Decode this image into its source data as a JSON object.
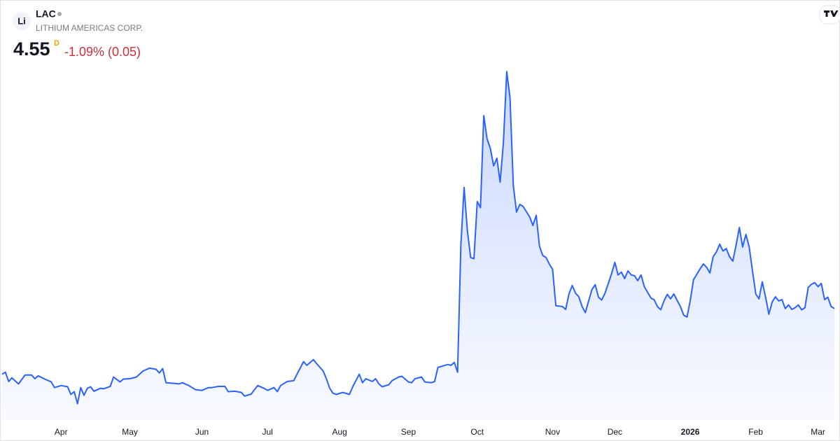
{
  "chart_data": {
    "type": "line",
    "logo": "Li",
    "symbol": "LAC",
    "name": "LITHIUM AMERICAS CORP.",
    "price": 4.55,
    "interval": "D",
    "change": "-1.09% (0.05)",
    "color": "#2962ff",
    "x": [
      0,
      1,
      2,
      3,
      5,
      7,
      9,
      10,
      11,
      13,
      15,
      16,
      18,
      20,
      21,
      22,
      23,
      24,
      25,
      26,
      27,
      28,
      30,
      31,
      33,
      34,
      36,
      37,
      39,
      41,
      43,
      45,
      47,
      48,
      49,
      50,
      53,
      54,
      55,
      57,
      59,
      61,
      63,
      64,
      66,
      68,
      69,
      71,
      73,
      74,
      76,
      78,
      80,
      81,
      83,
      84,
      85,
      87,
      89,
      90,
      92,
      93,
      95,
      96,
      98,
      99,
      100,
      101,
      102,
      104,
      106,
      107,
      109,
      110,
      111,
      113,
      114,
      115,
      116,
      118,
      119,
      121,
      122,
      124,
      125,
      126,
      128,
      129,
      131,
      132,
      133,
      134,
      136,
      137,
      138,
      139,
      140,
      141,
      142,
      143,
      144,
      145,
      146,
      147,
      148,
      149,
      150,
      151,
      152,
      153,
      154,
      155,
      156,
      157,
      158,
      159,
      161,
      162,
      163,
      164,
      165,
      166,
      167,
      168,
      169,
      171,
      172,
      173,
      174,
      175,
      176,
      177,
      178,
      179,
      180,
      181,
      182,
      183,
      184,
      185,
      186,
      187,
      188,
      189,
      190,
      191,
      192,
      193,
      194,
      195,
      196,
      198,
      199,
      200,
      201,
      202,
      203,
      204,
      205,
      207,
      208,
      209,
      210,
      211,
      213,
      214,
      215,
      216,
      217,
      218,
      219,
      220,
      221,
      222,
      223,
      224,
      225,
      226,
      227,
      228,
      229,
      230,
      231,
      232,
      233,
      234,
      235,
      236,
      237,
      238,
      239,
      240,
      241,
      242,
      243,
      244,
      245,
      246,
      247,
      248,
      249,
      250,
      251,
      252,
      253,
      254
    ],
    "values": [
      2.93,
      2.98,
      2.75,
      2.84,
      2.69,
      2.91,
      2.91,
      2.82,
      2.89,
      2.81,
      2.74,
      2.6,
      2.65,
      2.62,
      2.43,
      2.5,
      2.2,
      2.6,
      2.41,
      2.58,
      2.62,
      2.51,
      2.58,
      2.57,
      2.63,
      2.86,
      2.74,
      2.81,
      2.82,
      2.86,
      3.01,
      3.08,
      3.05,
      2.96,
      3.07,
      2.72,
      2.7,
      2.69,
      2.72,
      2.65,
      2.55,
      2.53,
      2.6,
      2.6,
      2.63,
      2.63,
      2.5,
      2.51,
      2.48,
      2.39,
      2.44,
      2.65,
      2.58,
      2.53,
      2.6,
      2.5,
      2.65,
      2.75,
      2.77,
      2.93,
      3.24,
      3.15,
      3.29,
      3.19,
      3.01,
      2.81,
      2.58,
      2.46,
      2.43,
      2.48,
      2.43,
      2.62,
      2.93,
      2.72,
      2.82,
      2.75,
      2.82,
      2.69,
      2.62,
      2.67,
      2.77,
      2.86,
      2.88,
      2.74,
      2.72,
      2.82,
      2.86,
      2.74,
      2.72,
      2.75,
      3.1,
      3.12,
      3.17,
      3.15,
      3.22,
      2.98,
      6.12,
      7.54,
      6.47,
      5.81,
      5.78,
      7.19,
      7.04,
      9.31,
      8.74,
      8.5,
      8.07,
      8.26,
      7.67,
      8.66,
      10.4,
      9.75,
      7.59,
      6.93,
      7.12,
      7.07,
      6.81,
      6.6,
      6.85,
      6.09,
      5.86,
      5.81,
      5.65,
      5.52,
      4.62,
      4.6,
      4.53,
      4.91,
      5.12,
      4.93,
      4.84,
      4.6,
      4.45,
      4.74,
      5.02,
      5.14,
      4.83,
      4.76,
      4.93,
      5.17,
      5.41,
      5.69,
      5.38,
      5.45,
      5.29,
      5.48,
      5.38,
      5.36,
      5.24,
      5.38,
      5.09,
      4.81,
      4.77,
      4.6,
      4.52,
      4.74,
      4.9,
      4.79,
      4.91,
      4.6,
      4.39,
      4.34,
      4.74,
      5.26,
      5.53,
      5.65,
      5.57,
      5.43,
      5.83,
      5.95,
      6.14,
      5.97,
      6.03,
      5.83,
      5.72,
      6.12,
      6.55,
      6.07,
      6.38,
      6.07,
      5.48,
      4.91,
      4.79,
      5.21,
      4.83,
      4.41,
      4.71,
      4.84,
      4.74,
      4.77,
      4.55,
      4.64,
      4.53,
      4.57,
      4.64,
      4.52,
      4.57,
      5.07,
      5.15,
      5.19,
      5.09,
      5.17,
      4.77,
      4.83,
      4.6,
      4.55
    ],
    "xlim": [
      0,
      254
    ],
    "xticks": [
      {
        "value": 18,
        "label": "Apr"
      },
      {
        "value": 39,
        "label": "May"
      },
      {
        "value": 61,
        "label": "Jun"
      },
      {
        "value": 81,
        "label": "Jul"
      },
      {
        "value": 103,
        "label": "Aug"
      },
      {
        "value": 124,
        "label": "Sep"
      },
      {
        "value": 145,
        "label": "Oct"
      },
      {
        "value": 168,
        "label": "Nov"
      },
      {
        "value": 187,
        "label": "Dec"
      },
      {
        "value": 210,
        "label": "2026"
      },
      {
        "value": 230,
        "label": "Feb"
      },
      {
        "value": 249,
        "label": "Mar"
      }
    ],
    "ylim": [
      1.8,
      10.8
    ]
  }
}
